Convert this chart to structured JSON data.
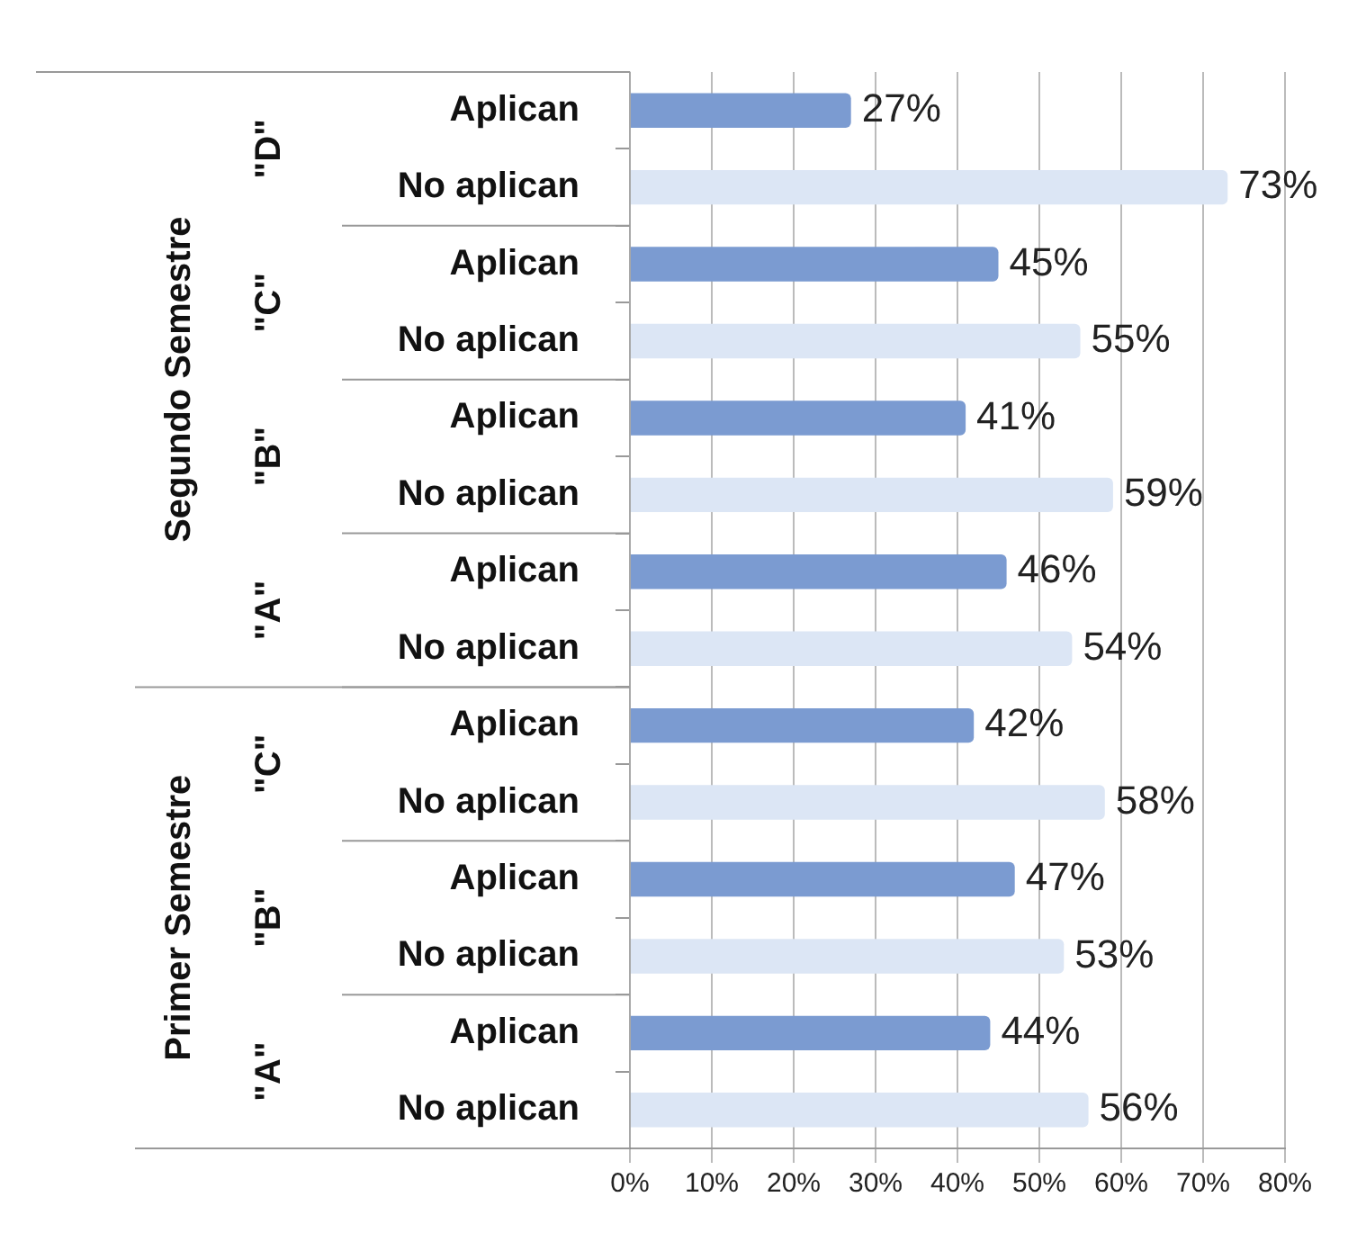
{
  "chart_data": {
    "type": "bar",
    "orientation": "horizontal",
    "categories": [
      "Aplican",
      "No aplican",
      "Aplican",
      "No aplican",
      "Aplican",
      "No aplican",
      "Aplican",
      "No aplican",
      "Aplican",
      "No aplican",
      "Aplican",
      "No aplican",
      "Aplican",
      "No aplican"
    ],
    "values": [
      27,
      73,
      45,
      55,
      41,
      59,
      46,
      54,
      42,
      58,
      47,
      53,
      44,
      56
    ],
    "colors": [
      "#7b9bd1",
      "#dce6f5",
      "#7b9bd1",
      "#dce6f5",
      "#7b9bd1",
      "#dce6f5",
      "#7b9bd1",
      "#dce6f5",
      "#7b9bd1",
      "#dce6f5",
      "#7b9bd1",
      "#dce6f5",
      "#7b9bd1",
      "#dce6f5"
    ],
    "value_labels": [
      "27%",
      "73%",
      "45%",
      "55%",
      "41%",
      "59%",
      "46%",
      "54%",
      "42%",
      "58%",
      "47%",
      "53%",
      "44%",
      "56%"
    ],
    "xlim": [
      0,
      80
    ],
    "xticks": [
      {
        "value": 0,
        "label": "0%"
      },
      {
        "value": 10,
        "label": "10%"
      },
      {
        "value": 20,
        "label": "20%"
      },
      {
        "value": 30,
        "label": "30%"
      },
      {
        "value": 40,
        "label": "40%"
      },
      {
        "value": 50,
        "label": "50%"
      },
      {
        "value": 60,
        "label": "60%"
      },
      {
        "value": 70,
        "label": "70%"
      },
      {
        "value": 80,
        "label": "80%"
      }
    ],
    "annotations": [
      "\"D\"",
      "\"C\"",
      "\"B\"",
      "\"A\"",
      "\"C\"",
      "\"B\"",
      "\"A\"",
      "Segundo Semestre",
      "Primer Semestre"
    ],
    "grid": true,
    "legend": false
  }
}
